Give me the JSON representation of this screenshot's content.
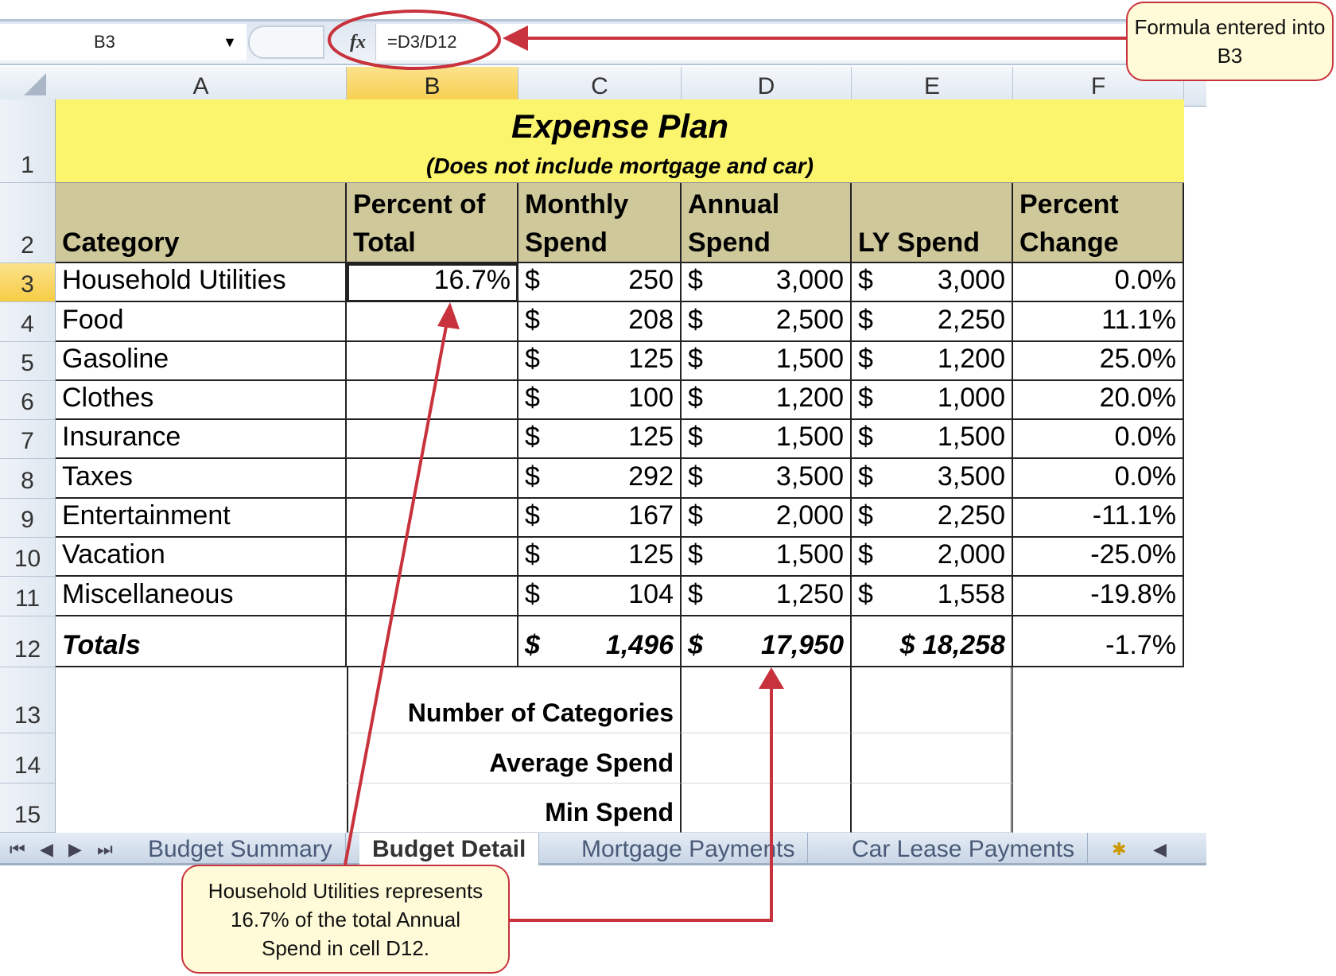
{
  "formula_bar": {
    "name_box": "B3",
    "formula": "=D3/D12",
    "fx_icon": "fx"
  },
  "columns": [
    "A",
    "B",
    "C",
    "D",
    "E",
    "F"
  ],
  "selected_column": "B",
  "rows_numbers": [
    "1",
    "2",
    "3",
    "4",
    "5",
    "6",
    "7",
    "8",
    "9",
    "10",
    "11",
    "12",
    "13",
    "14",
    "15"
  ],
  "title": {
    "main": "Expense Plan",
    "sub": "(Does not include mortgage and car)"
  },
  "headers": [
    [
      "Category"
    ],
    [
      "Percent of",
      "Total"
    ],
    [
      "Monthly",
      "Spend"
    ],
    [
      "Annual",
      "Spend"
    ],
    [
      "LY Spend"
    ],
    [
      "Percent",
      "Change"
    ]
  ],
  "data_rows": [
    [
      "Household Utilities",
      "16.7%",
      "250",
      "3,000",
      "3,000",
      "0.0%"
    ],
    [
      "Food",
      "",
      "208",
      "2,500",
      "2,250",
      "11.1%"
    ],
    [
      "Gasoline",
      "",
      "125",
      "1,500",
      "1,200",
      "25.0%"
    ],
    [
      "Clothes",
      "",
      "100",
      "1,200",
      "1,000",
      "20.0%"
    ],
    [
      "Insurance",
      "",
      "125",
      "1,500",
      "1,500",
      "0.0%"
    ],
    [
      "Taxes",
      "",
      "292",
      "3,500",
      "3,500",
      "0.0%"
    ],
    [
      "Entertainment",
      "",
      "167",
      "2,000",
      "2,250",
      "-11.1%"
    ],
    [
      "Vacation",
      "",
      "125",
      "1,500",
      "2,000",
      "-25.0%"
    ],
    [
      "Miscellaneous",
      "",
      "104",
      "1,250",
      "1,558",
      "-19.8%"
    ]
  ],
  "currency": "$",
  "totals": {
    "label": "Totals",
    "monthly": "1,496",
    "annual": "17,950",
    "ly": "$ 18,258",
    "change": "-1.7%"
  },
  "stats_labels": [
    "Number of Categories",
    "Average Spend",
    "Min Spend"
  ],
  "sheet_tabs": [
    "Budget Summary",
    "Budget Detail",
    "Mortgage Payments",
    "Car Lease Payments"
  ],
  "active_tab": "Budget Detail",
  "callouts": {
    "formula": "Formula entered into B3",
    "explanation": "Household Utilities represents 16.7% of the total Annual Spend in cell D12."
  },
  "colors": {
    "title_fill": "#fbf56d",
    "header_fill": "#cfc89a",
    "annotation_red": "#c8323c",
    "callout_fill": "#fffbd8"
  }
}
